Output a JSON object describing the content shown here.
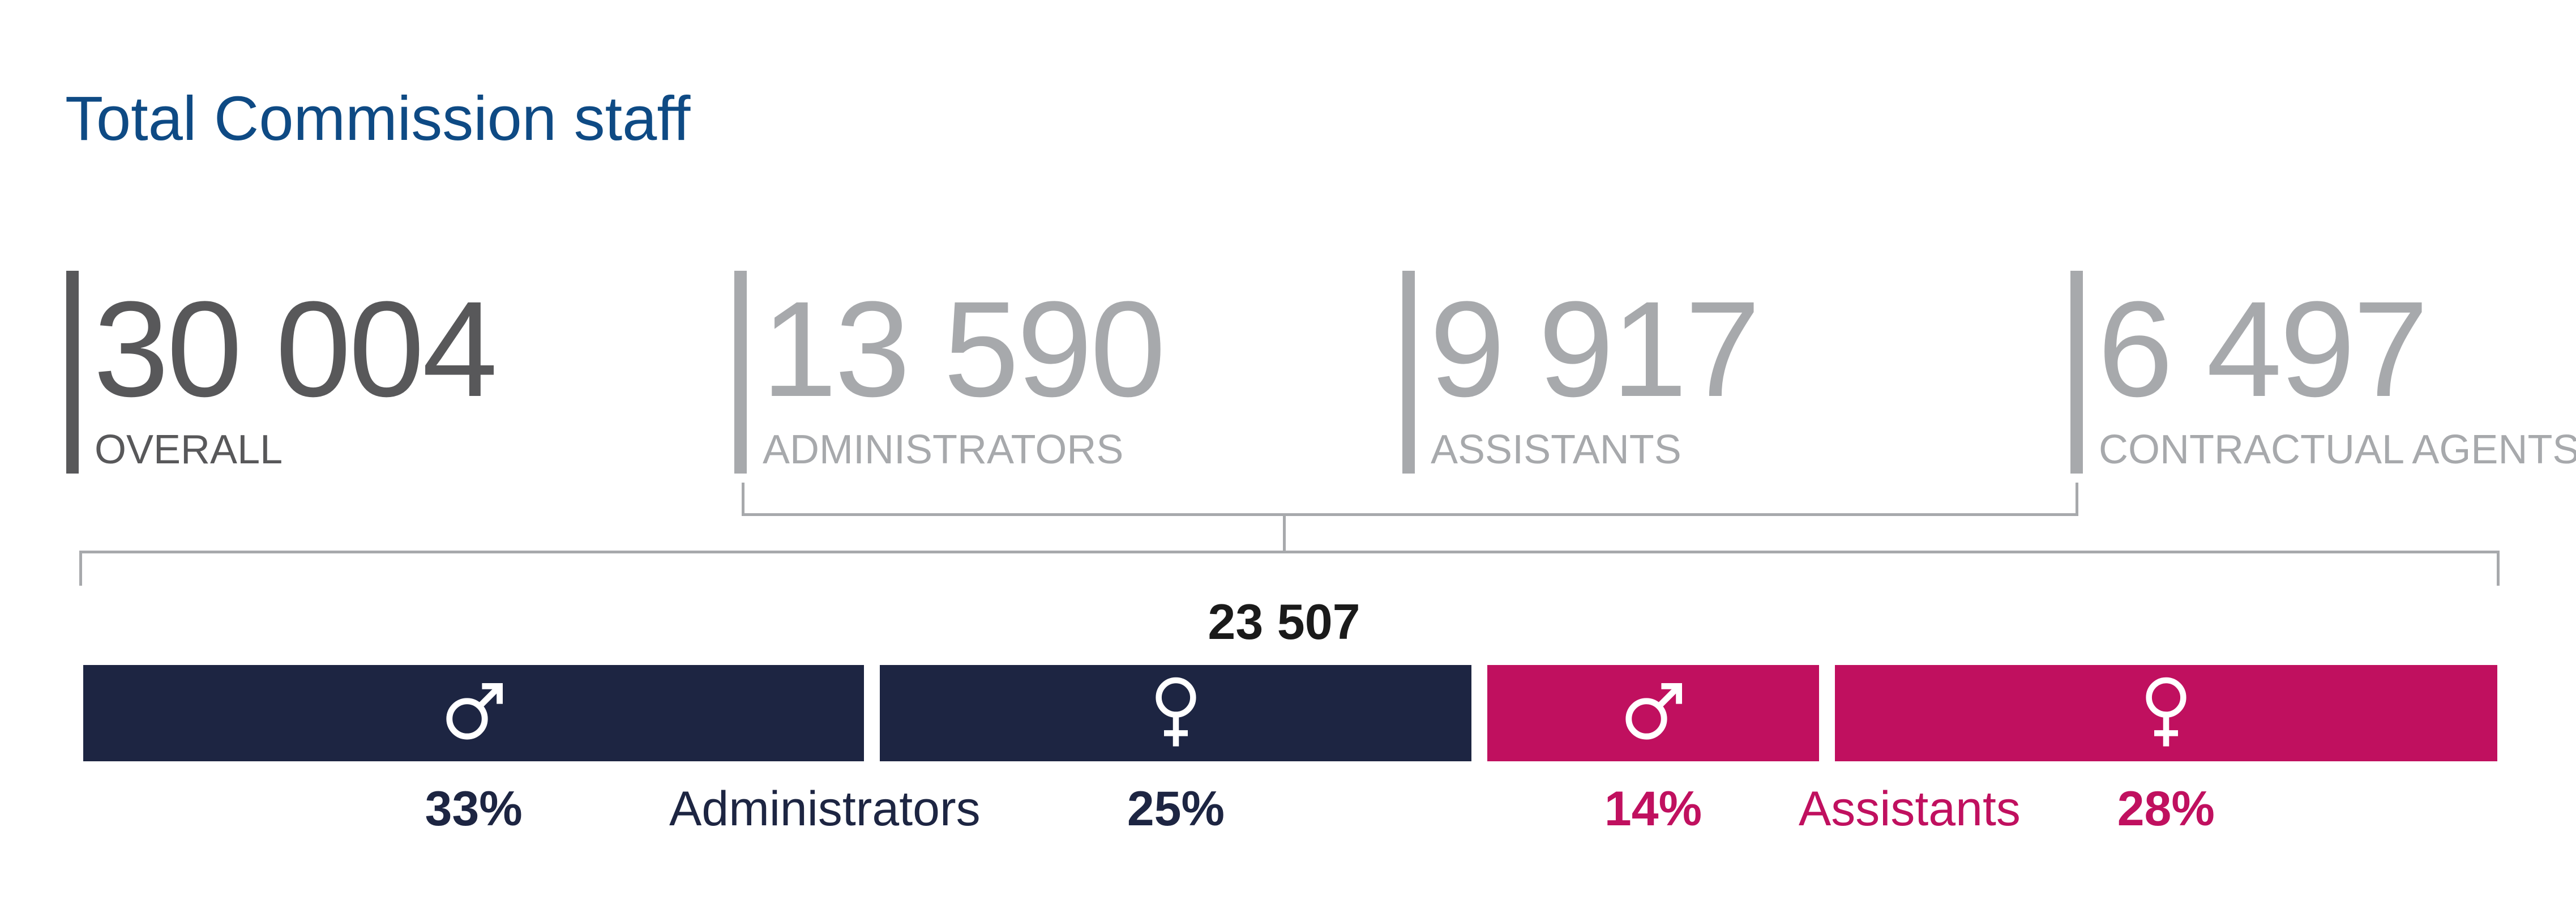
{
  "title": "Total Commission staff",
  "stats": [
    {
      "value": "30 004",
      "label": "OVERALL"
    },
    {
      "value": "13 590",
      "label": "ADMINISTRATORS"
    },
    {
      "value": "9 917",
      "label": "ASSISTANTS"
    },
    {
      "value": "6 497",
      "label": "CONTRACTUAL AGENTS"
    }
  ],
  "subtotal": "23 507",
  "colors": {
    "title": "#0e4a84",
    "administrators": "#1d2542",
    "assistants": "#c0105f",
    "overall": "#58585a",
    "secondary": "#a7a9ac"
  },
  "chart_data": {
    "type": "bar",
    "orientation": "horizontal-stacked",
    "total_label": "23 507",
    "groups": [
      {
        "name": "Administrators",
        "color": "#1d2542",
        "segments": [
          {
            "icon": "male-icon",
            "value": 33,
            "label": "33%"
          },
          {
            "icon": "female-icon",
            "value": 25,
            "label": "25%"
          }
        ]
      },
      {
        "name": "Assistants",
        "color": "#c0105f",
        "segments": [
          {
            "icon": "male-icon",
            "value": 14,
            "label": "14%"
          },
          {
            "icon": "female-icon",
            "value": 28,
            "label": "28%"
          }
        ]
      }
    ]
  }
}
